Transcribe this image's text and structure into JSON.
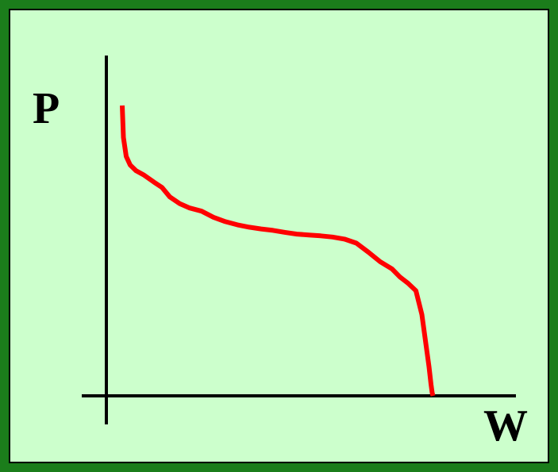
{
  "chart_data": {
    "type": "line",
    "title": "",
    "xlabel": "W",
    "ylabel": "P",
    "grid": false,
    "legend": "none",
    "ticks": "none",
    "xlim": [
      0,
      100
    ],
    "ylim": [
      0,
      100
    ],
    "series": [
      {
        "color": "#ff0000",
        "x": [
          4,
          4.3,
          5,
          6,
          7.5,
          9.5,
          12,
          14,
          16,
          18.5,
          21,
          24,
          27,
          30,
          33,
          36,
          39,
          42,
          45,
          48,
          51,
          54,
          57,
          60,
          63,
          66,
          69,
          72,
          74,
          76,
          78,
          79.5,
          80.5,
          81.3,
          81.8,
          82.1,
          82.3
        ],
        "y": [
          100,
          89,
          82.5,
          79.5,
          77.5,
          76,
          73.6,
          71.8,
          68.5,
          66.2,
          64.7,
          63.6,
          61.5,
          60,
          58.9,
          58.1,
          57.5,
          57,
          56.3,
          55.7,
          55.4,
          55.1,
          54.7,
          54,
          52.6,
          49.5,
          46.2,
          43.7,
          40.9,
          38.8,
          36.2,
          28,
          18,
          10,
          4,
          1,
          0
        ]
      }
    ]
  }
}
